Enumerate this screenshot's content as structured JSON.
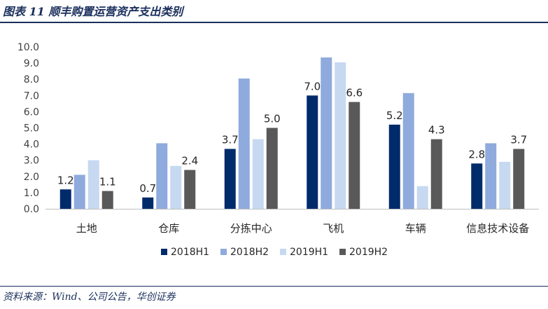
{
  "figure": {
    "title": "图表 11   顺丰购置运营资产支出类别",
    "source": "资料来源：Wind、公司公告，华创证券"
  },
  "colors": {
    "2018H1": "#002b6b",
    "2018H2": "#8faadc",
    "2019H1": "#c6d9f1",
    "2019H2": "#595959",
    "rule": "#1a2f5c"
  },
  "chart_data": {
    "type": "bar",
    "categories": [
      "土地",
      "仓库",
      "分拣中心",
      "飞机",
      "车辆",
      "信息技术设备"
    ],
    "series": [
      {
        "name": "2018H1",
        "values": [
          1.2,
          0.7,
          3.7,
          7.0,
          5.2,
          2.8
        ]
      },
      {
        "name": "2018H2",
        "values": [
          2.1,
          4.05,
          8.05,
          9.35,
          7.15,
          4.05
        ]
      },
      {
        "name": "2019H1",
        "values": [
          3.0,
          2.65,
          4.3,
          9.05,
          1.4,
          2.9
        ]
      },
      {
        "name": "2019H2",
        "values": [
          1.1,
          2.4,
          5.0,
          6.6,
          4.3,
          3.7
        ]
      }
    ],
    "data_labels": [
      {
        "category": "土地",
        "series": "2018H1",
        "text": "1.2"
      },
      {
        "category": "土地",
        "series": "2019H2",
        "text": "1.1"
      },
      {
        "category": "仓库",
        "series": "2018H1",
        "text": "0.7"
      },
      {
        "category": "仓库",
        "series": "2019H2",
        "text": "2.4"
      },
      {
        "category": "分拣中心",
        "series": "2018H1",
        "text": "3.7"
      },
      {
        "category": "分拣中心",
        "series": "2019H2",
        "text": "5.0"
      },
      {
        "category": "飞机",
        "series": "2018H1",
        "text": "7.0"
      },
      {
        "category": "飞机",
        "series": "2019H2",
        "text": "6.6"
      },
      {
        "category": "车辆",
        "series": "2018H1",
        "text": "5.2"
      },
      {
        "category": "车辆",
        "series": "2019H2",
        "text": "4.3"
      },
      {
        "category": "信息技术设备",
        "series": "2018H1",
        "text": "2.8"
      },
      {
        "category": "信息技术设备",
        "series": "2019H2",
        "text": "3.7"
      }
    ],
    "yticks": [
      "0.0",
      "1.0",
      "2.0",
      "3.0",
      "4.0",
      "5.0",
      "6.0",
      "7.0",
      "8.0",
      "9.0",
      "10.0"
    ],
    "ylim": [
      0,
      10
    ],
    "grid": false,
    "legend_position": "bottom"
  }
}
